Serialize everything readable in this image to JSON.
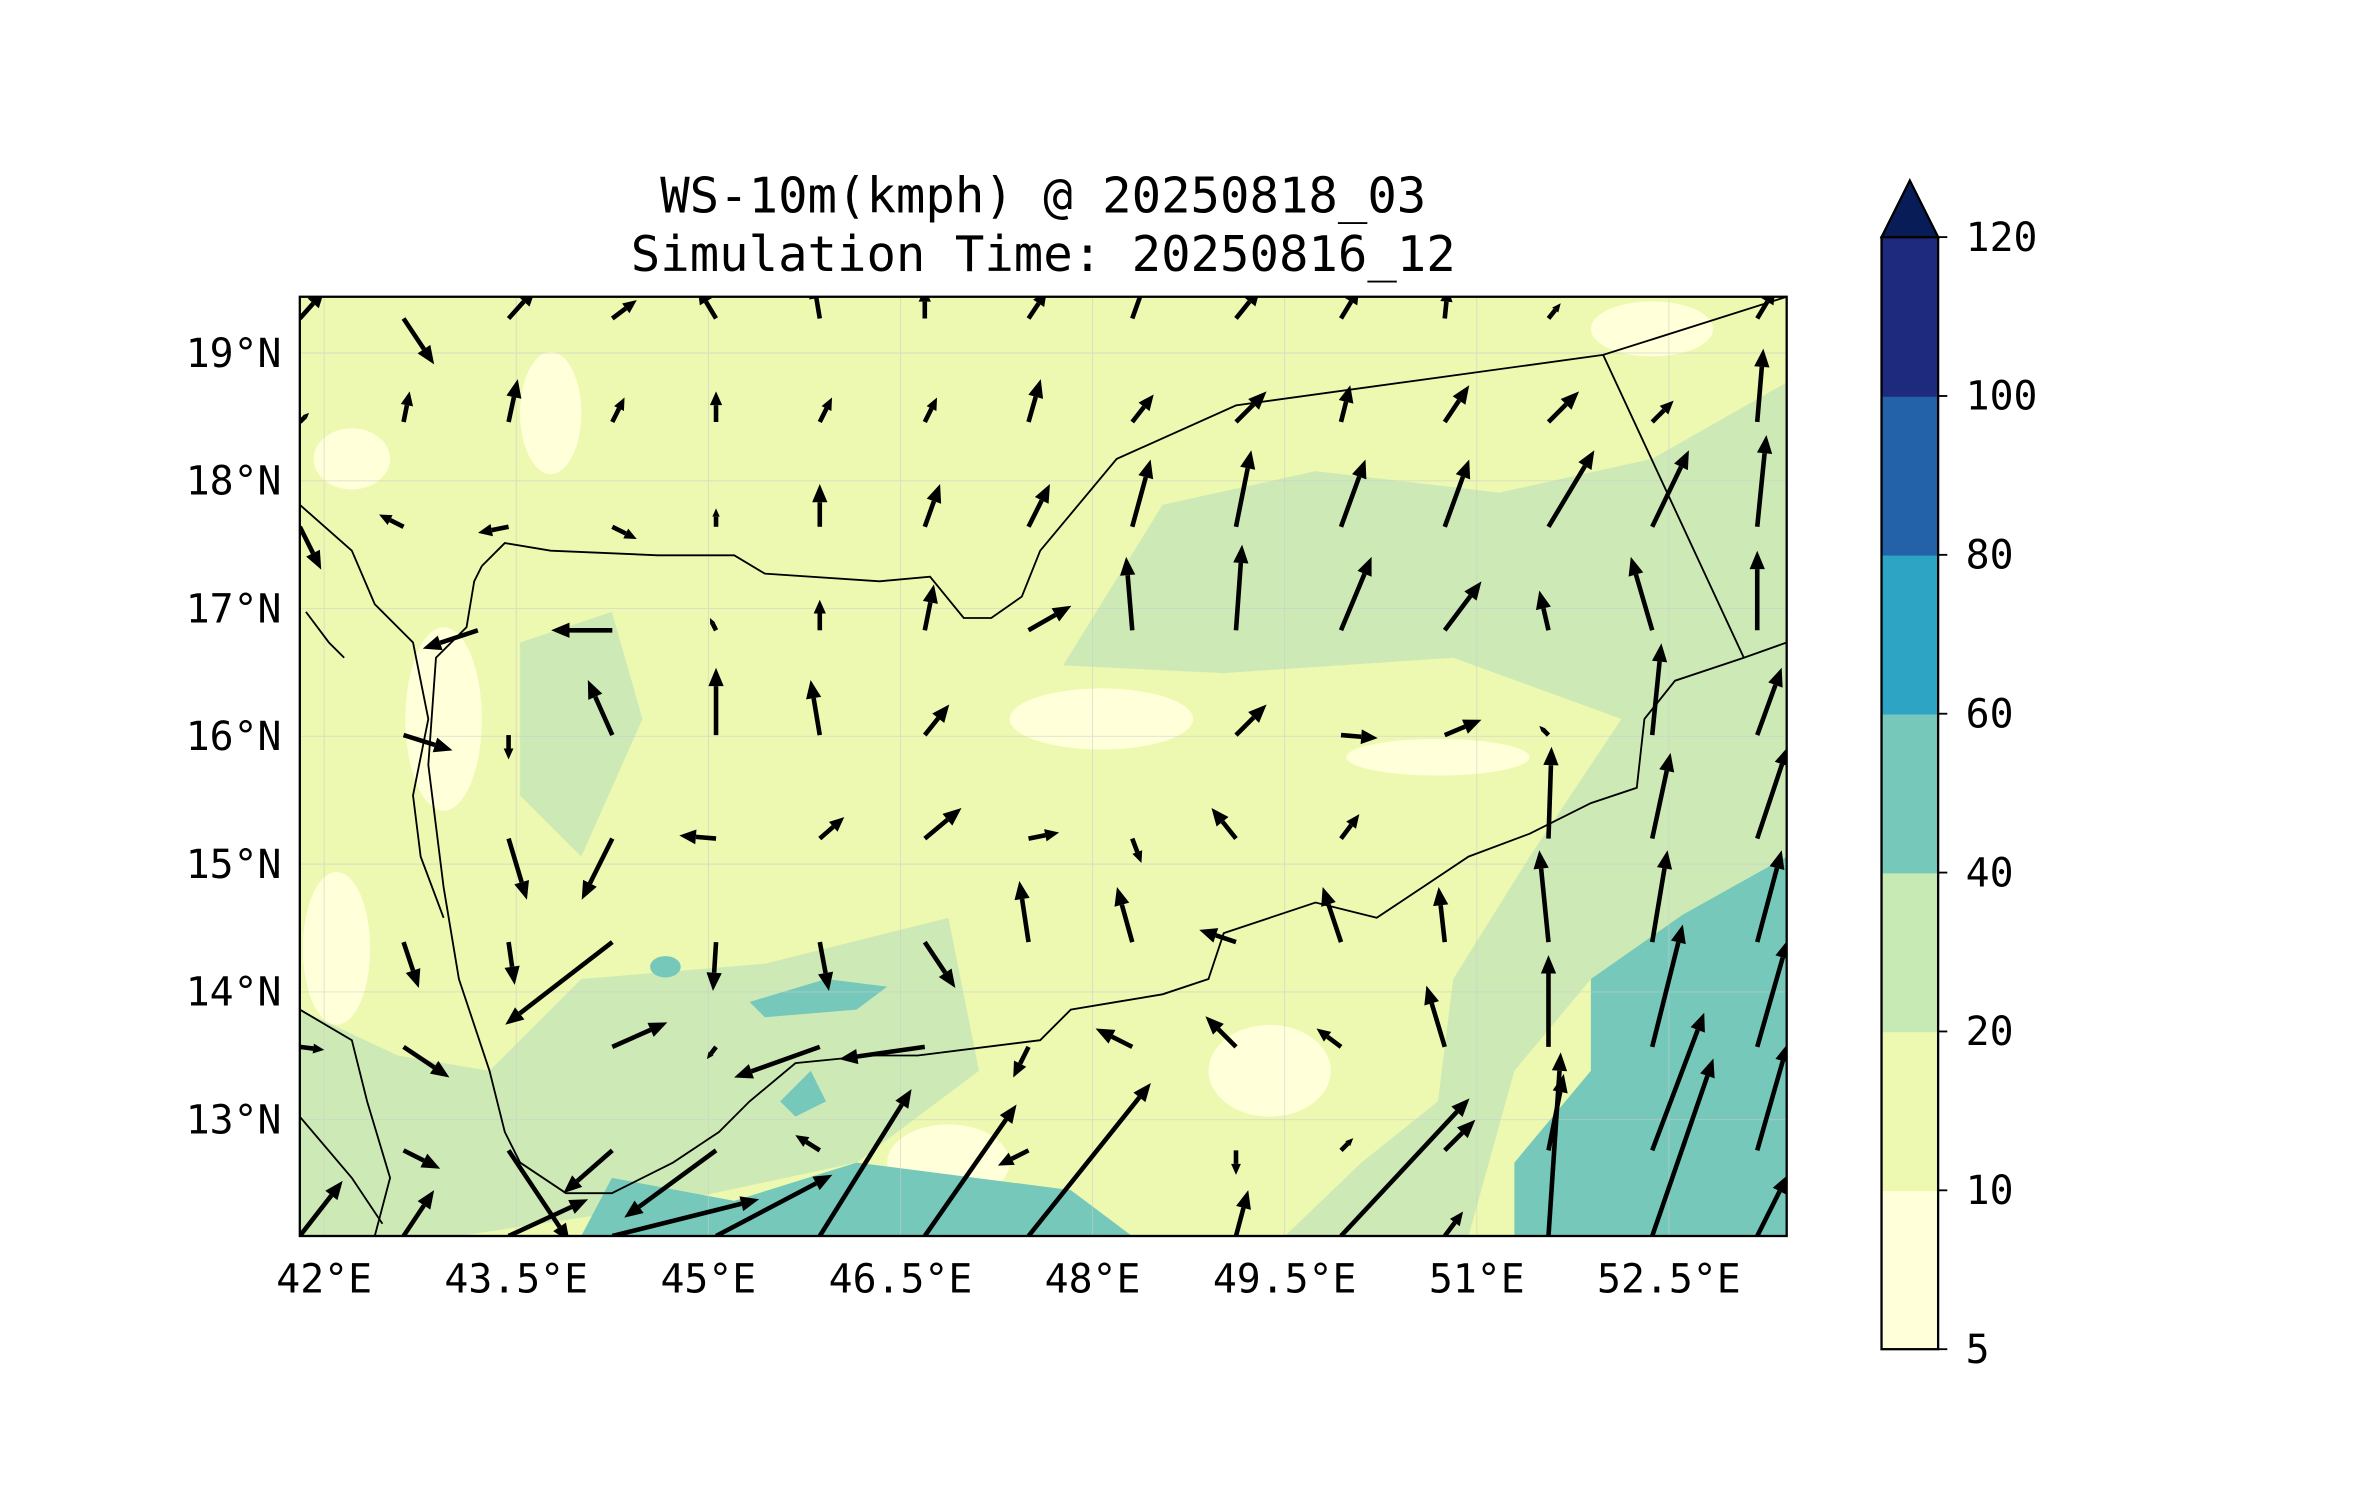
{
  "chart_data": {
    "type": "contour+quiver",
    "title": "WS-10m(kmph) @ 20250818_03",
    "subtitle": "Simulation Time: 20250816_12",
    "xlim": [
      41.81,
      53.42
    ],
    "ylim": [
      12.09,
      19.44
    ],
    "grid": true,
    "x_ticks": [
      42,
      43.5,
      45,
      46.5,
      48,
      49.5,
      51,
      52.5
    ],
    "x_tick_labels": [
      "42°E",
      "43.5°E",
      "45°E",
      "46.5°E",
      "48°E",
      "49.5°E",
      "51°E",
      "52.5°E"
    ],
    "y_ticks": [
      13,
      14,
      15,
      16,
      17,
      18,
      19
    ],
    "y_tick_labels": [
      "13°N",
      "14°N",
      "15°N",
      "16°N",
      "17°N",
      "18°N",
      "19°N"
    ],
    "colorbar": {
      "levels": [
        5,
        10,
        20,
        40,
        60,
        80,
        100,
        120
      ],
      "tick_labels": [
        "5",
        "10",
        "20",
        "40",
        "60",
        "80",
        "100",
        "120"
      ],
      "colors": [
        "#ffffd9",
        "#edf8b1",
        "#c7e9b4",
        "#76c8bb",
        "#2ea4c4",
        "#2362a8",
        "#1d2a7e"
      ],
      "extend_color": "#081d58",
      "extend": "max"
    },
    "contour_colors": {
      "calm": "#ffffd9",
      "light": "#edf8b1",
      "moderate": "#cdeab6",
      "strong": "#76c8bb"
    },
    "wind_vectors": {
      "columns": [
        "lon",
        "lat",
        "u",
        "v"
      ],
      "rows": [
        [
          41.81,
          19.27,
          8,
          9
        ],
        [
          42.62,
          19.27,
          10,
          -15
        ],
        [
          43.44,
          19.27,
          9,
          10
        ],
        [
          44.25,
          19.27,
          8,
          6
        ],
        [
          45.06,
          19.27,
          -6,
          10
        ],
        [
          45.87,
          19.27,
          -2,
          12
        ],
        [
          46.69,
          19.27,
          0,
          10
        ],
        [
          47.5,
          19.27,
          6,
          9
        ],
        [
          48.31,
          19.27,
          5,
          14
        ],
        [
          49.12,
          19.27,
          8,
          10
        ],
        [
          49.94,
          19.27,
          6,
          10
        ],
        [
          50.75,
          19.27,
          1,
          10
        ],
        [
          51.56,
          19.27,
          4,
          5
        ],
        [
          53.19,
          19.27,
          6,
          10
        ],
        [
          41.81,
          18.46,
          3,
          3
        ],
        [
          42.62,
          18.46,
          2,
          10
        ],
        [
          43.44,
          18.46,
          3,
          14
        ],
        [
          44.25,
          18.46,
          4,
          8
        ],
        [
          45.06,
          18.46,
          0,
          10
        ],
        [
          45.87,
          18.46,
          4,
          8
        ],
        [
          46.69,
          18.46,
          4,
          8
        ],
        [
          47.5,
          18.46,
          4,
          14
        ],
        [
          48.31,
          18.46,
          7,
          9
        ],
        [
          49.12,
          18.46,
          10,
          10
        ],
        [
          49.94,
          18.46,
          3,
          12
        ],
        [
          50.75,
          18.46,
          8,
          12
        ],
        [
          51.56,
          18.46,
          10,
          10
        ],
        [
          52.37,
          18.46,
          7,
          7
        ],
        [
          53.19,
          18.46,
          2,
          24
        ],
        [
          41.81,
          17.64,
          7,
          -14
        ],
        [
          42.62,
          17.64,
          -8,
          4
        ],
        [
          43.44,
          17.64,
          -10,
          -2
        ],
        [
          44.25,
          17.64,
          8,
          -4
        ],
        [
          45.06,
          17.64,
          0,
          6
        ],
        [
          45.87,
          17.64,
          0,
          14
        ],
        [
          46.69,
          17.64,
          5,
          14
        ],
        [
          47.5,
          17.64,
          7,
          14
        ],
        [
          48.31,
          17.64,
          6,
          22
        ],
        [
          49.12,
          17.64,
          5,
          25
        ],
        [
          49.94,
          17.64,
          8,
          22
        ],
        [
          50.75,
          17.64,
          8,
          22
        ],
        [
          51.56,
          17.64,
          15,
          25
        ],
        [
          52.37,
          17.64,
          12,
          25
        ],
        [
          53.19,
          17.64,
          3,
          30
        ],
        [
          43.2,
          16.83,
          -18,
          -6
        ],
        [
          44.25,
          16.83,
          -20,
          0
        ],
        [
          45.06,
          16.83,
          -2,
          4
        ],
        [
          45.87,
          16.83,
          0,
          10
        ],
        [
          46.69,
          16.83,
          3,
          15
        ],
        [
          47.5,
          16.83,
          14,
          8
        ],
        [
          48.31,
          16.83,
          -2,
          24
        ],
        [
          49.12,
          16.83,
          2,
          28
        ],
        [
          49.94,
          16.83,
          10,
          24
        ],
        [
          50.75,
          16.83,
          12,
          16
        ],
        [
          51.56,
          16.83,
          -3,
          13
        ],
        [
          52.37,
          16.83,
          -7,
          24
        ],
        [
          53.19,
          16.83,
          0,
          26
        ],
        [
          42.62,
          16.01,
          16,
          -5
        ],
        [
          43.44,
          16.01,
          0,
          -8
        ],
        [
          44.25,
          16.01,
          -8,
          18
        ],
        [
          45.06,
          16.01,
          0,
          22
        ],
        [
          45.87,
          16.01,
          -3,
          18
        ],
        [
          46.69,
          16.01,
          8,
          10
        ],
        [
          49.12,
          16.01,
          10,
          10
        ],
        [
          49.94,
          16.01,
          12,
          -1
        ],
        [
          50.75,
          16.01,
          12,
          5
        ],
        [
          51.56,
          16.01,
          -3,
          3
        ],
        [
          52.37,
          16.01,
          3,
          30
        ],
        [
          53.19,
          16.01,
          8,
          22
        ],
        [
          43.44,
          15.2,
          6,
          -20
        ],
        [
          44.25,
          15.2,
          -10,
          -20
        ],
        [
          45.06,
          15.2,
          -12,
          1
        ],
        [
          45.87,
          15.2,
          8,
          7
        ],
        [
          46.69,
          15.2,
          12,
          10
        ],
        [
          47.5,
          15.2,
          10,
          2
        ],
        [
          48.31,
          15.2,
          3,
          -8
        ],
        [
          49.12,
          15.2,
          -8,
          10
        ],
        [
          49.94,
          15.2,
          6,
          8
        ],
        [
          51.56,
          15.2,
          1,
          30
        ],
        [
          52.37,
          15.2,
          6,
          28
        ],
        [
          53.19,
          15.2,
          10,
          30
        ],
        [
          42.62,
          14.39,
          5,
          -15
        ],
        [
          43.44,
          14.39,
          2,
          -14
        ],
        [
          44.25,
          14.39,
          -35,
          -27
        ],
        [
          45.06,
          14.39,
          -1,
          -16
        ],
        [
          45.87,
          14.39,
          3,
          -16
        ],
        [
          46.69,
          14.39,
          10,
          -15
        ],
        [
          47.5,
          14.39,
          -3,
          20
        ],
        [
          48.31,
          14.39,
          -5,
          18
        ],
        [
          49.12,
          14.39,
          -12,
          4
        ],
        [
          49.94,
          14.39,
          -6,
          18
        ],
        [
          50.75,
          14.39,
          -2,
          18
        ],
        [
          51.56,
          14.39,
          -3,
          30
        ],
        [
          52.37,
          14.39,
          5,
          30
        ],
        [
          53.19,
          14.39,
          8,
          30
        ],
        [
          41.81,
          13.57,
          8,
          -1
        ],
        [
          42.62,
          13.57,
          15,
          -10
        ],
        [
          44.25,
          13.57,
          18,
          8
        ],
        [
          45.06,
          13.57,
          -3,
          -4
        ],
        [
          45.87,
          13.57,
          -28,
          -10
        ],
        [
          46.69,
          13.57,
          -28,
          -4
        ],
        [
          47.5,
          13.57,
          -5,
          -10
        ],
        [
          48.31,
          13.57,
          -12,
          6
        ],
        [
          49.12,
          13.57,
          -10,
          10
        ],
        [
          49.94,
          13.57,
          -8,
          6
        ],
        [
          50.75,
          13.57,
          -6,
          20
        ],
        [
          51.56,
          13.57,
          0,
          30
        ],
        [
          52.37,
          13.57,
          10,
          40
        ],
        [
          53.19,
          13.57,
          10,
          35
        ],
        [
          42.62,
          12.76,
          12,
          -6
        ],
        [
          43.44,
          12.76,
          20,
          -30
        ],
        [
          44.25,
          12.76,
          -16,
          -14
        ],
        [
          45.06,
          12.76,
          -30,
          -22
        ],
        [
          45.87,
          12.76,
          -8,
          5
        ],
        [
          47.5,
          12.76,
          -10,
          -5
        ],
        [
          49.12,
          12.76,
          0,
          -8
        ],
        [
          49.94,
          12.76,
          4,
          4
        ],
        [
          50.75,
          12.76,
          10,
          10
        ],
        [
          51.56,
          12.76,
          5,
          25
        ],
        [
          52.37,
          12.76,
          17,
          45
        ],
        [
          53.19,
          12.76,
          10,
          35
        ],
        [
          41.81,
          12.09,
          14,
          18
        ],
        [
          42.62,
          12.09,
          10,
          15
        ],
        [
          43.44,
          12.09,
          26,
          12
        ],
        [
          44.25,
          12.09,
          48,
          12
        ],
        [
          45.06,
          12.09,
          38,
          20
        ],
        [
          45.87,
          12.09,
          30,
          48
        ],
        [
          46.69,
          12.09,
          30,
          43
        ],
        [
          47.5,
          12.09,
          40,
          50
        ],
        [
          49.12,
          12.09,
          4,
          15
        ],
        [
          49.94,
          12.09,
          42,
          45
        ],
        [
          50.75,
          12.09,
          6,
          8
        ],
        [
          51.56,
          12.09,
          4,
          60
        ],
        [
          52.37,
          12.09,
          20,
          58
        ],
        [
          53.19,
          12.09,
          10,
          20
        ]
      ]
    }
  }
}
